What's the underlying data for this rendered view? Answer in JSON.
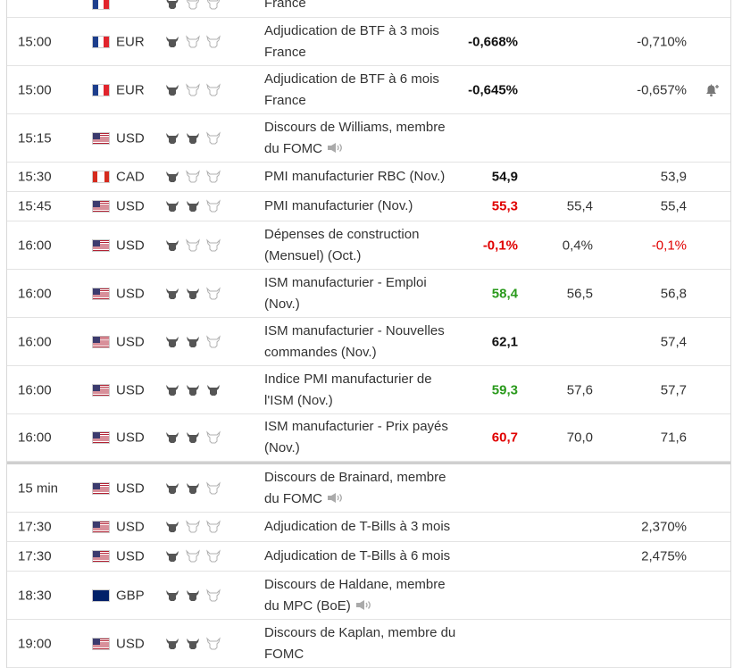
{
  "rows": [
    {
      "time": "",
      "flag": "fr",
      "currency": "",
      "importance": 1,
      "event": "France",
      "actual": "",
      "actual_class": "neu",
      "forecast": "",
      "previous": "",
      "previous_class": "",
      "alert": false,
      "speech": false,
      "h": 31
    },
    {
      "time": "15:00",
      "flag": "fr",
      "currency": "EUR",
      "importance": 1,
      "event": "Adjudication de BTF à 3 mois France",
      "actual": "-0,668%",
      "actual_class": "neu",
      "forecast": "",
      "previous": "-0,710%",
      "previous_class": "",
      "alert": false,
      "speech": false,
      "h": 54
    },
    {
      "time": "15:00",
      "flag": "fr",
      "currency": "EUR",
      "importance": 1,
      "event": "Adjudication de BTF à 6 mois France",
      "actual": "-0,645%",
      "actual_class": "neu",
      "forecast": "",
      "previous": "-0,657%",
      "previous_class": "",
      "alert": true,
      "speech": false,
      "h": 54
    },
    {
      "time": "15:15",
      "flag": "us",
      "currency": "USD",
      "importance": 2,
      "event": "Discours de Williams, membre du FOMC",
      "actual": "",
      "actual_class": "neu",
      "forecast": "",
      "previous": "",
      "previous_class": "",
      "alert": false,
      "speech": true,
      "h": 54
    },
    {
      "time": "15:30",
      "flag": "ca",
      "currency": "CAD",
      "importance": 1,
      "event": "PMI manufacturier RBC (Nov.)",
      "actual": "54,9",
      "actual_class": "neu",
      "forecast": "",
      "previous": "53,9",
      "previous_class": "",
      "alert": false,
      "speech": false,
      "h": 33
    },
    {
      "time": "15:45",
      "flag": "us",
      "currency": "USD",
      "importance": 2,
      "event": "PMI manufacturier (Nov.)",
      "actual": "55,3",
      "actual_class": "neg",
      "forecast": "55,4",
      "previous": "55,4",
      "previous_class": "",
      "alert": false,
      "speech": false,
      "h": 33
    },
    {
      "time": "16:00",
      "flag": "us",
      "currency": "USD",
      "importance": 1,
      "event": "Dépenses de construction (Mensuel) (Oct.)",
      "actual": "-0,1%",
      "actual_class": "neg",
      "forecast": "0,4%",
      "previous": "-0,1%",
      "previous_class": "neg",
      "alert": false,
      "speech": false,
      "h": 54
    },
    {
      "time": "16:00",
      "flag": "us",
      "currency": "USD",
      "importance": 2,
      "event": "ISM manufacturier - Emploi (Nov.)",
      "actual": "58,4",
      "actual_class": "pos",
      "forecast": "56,5",
      "previous": "56,8",
      "previous_class": "",
      "alert": false,
      "speech": false,
      "h": 54
    },
    {
      "time": "16:00",
      "flag": "us",
      "currency": "USD",
      "importance": 2,
      "event": "ISM manufacturier - Nouvelles commandes (Nov.)",
      "actual": "62,1",
      "actual_class": "neu",
      "forecast": "",
      "previous": "57,4",
      "previous_class": "",
      "alert": false,
      "speech": false,
      "h": 54
    },
    {
      "time": "16:00",
      "flag": "us",
      "currency": "USD",
      "importance": 3,
      "event": "Indice PMI manufacturier de l'ISM (Nov.)",
      "actual": "59,3",
      "actual_class": "pos",
      "forecast": "57,6",
      "previous": "57,7",
      "previous_class": "",
      "alert": false,
      "speech": false,
      "h": 54
    },
    {
      "time": "16:00",
      "flag": "us",
      "currency": "USD",
      "importance": 2,
      "event": "ISM manufacturier - Prix payés (Nov.)",
      "actual": "60,7",
      "actual_class": "neg",
      "forecast": "70,0",
      "previous": "71,6",
      "previous_class": "",
      "alert": false,
      "speech": false,
      "h": 53
    },
    {
      "time": "15 min",
      "flag": "us",
      "currency": "USD",
      "importance": 2,
      "event": "Discours de Brainard, membre du FOMC",
      "actual": "",
      "actual_class": "neu",
      "forecast": "",
      "previous": "",
      "previous_class": "",
      "alert": false,
      "speech": true,
      "h": 57,
      "sep": true
    },
    {
      "time": "17:30",
      "flag": "us",
      "currency": "USD",
      "importance": 1,
      "event": "Adjudication de T-Bills à 3 mois",
      "actual": "",
      "actual_class": "neu",
      "forecast": "",
      "previous": "2,370%",
      "previous_class": "",
      "alert": false,
      "speech": false,
      "h": 33
    },
    {
      "time": "17:30",
      "flag": "us",
      "currency": "USD",
      "importance": 1,
      "event": "Adjudication de T-Bills à 6 mois",
      "actual": "",
      "actual_class": "neu",
      "forecast": "",
      "previous": "2,475%",
      "previous_class": "",
      "alert": false,
      "speech": false,
      "h": 33
    },
    {
      "time": "18:30",
      "flag": "gb",
      "currency": "GBP",
      "importance": 2,
      "event": "Discours de Haldane, membre du MPC (BoE)",
      "actual": "",
      "actual_class": "neu",
      "forecast": "",
      "previous": "",
      "previous_class": "",
      "alert": false,
      "speech": true,
      "h": 54
    },
    {
      "time": "19:00",
      "flag": "us",
      "currency": "USD",
      "importance": 2,
      "event": "Discours de Kaplan, membre du FOMC",
      "actual": "",
      "actual_class": "neu",
      "forecast": "",
      "previous": "",
      "previous_class": "",
      "alert": false,
      "speech": false,
      "h": 54
    }
  ]
}
